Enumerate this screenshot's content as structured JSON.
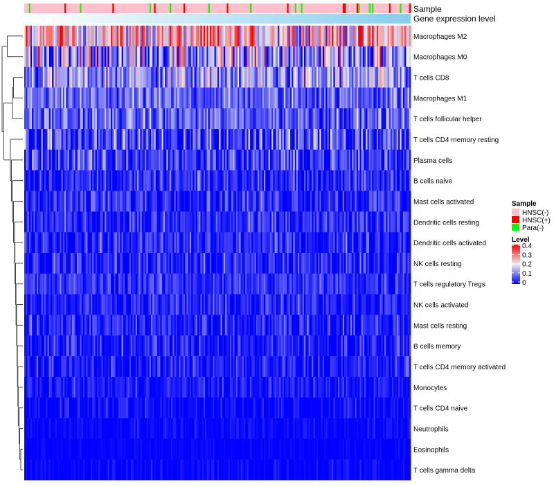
{
  "chart_data": {
    "type": "heatmap",
    "n_columns": 250,
    "annotations": [
      {
        "name": "Sample",
        "kind": "categorical"
      },
      {
        "name": "Gene expression level",
        "kind": "continuous",
        "colors": [
          "#FFFFFF",
          "#87CEEB"
        ]
      }
    ],
    "rows": [
      {
        "label": "Macrophages M2",
        "mean": 0.24,
        "spread": 0.12
      },
      {
        "label": "Macrophages M0",
        "mean": 0.13,
        "spread": 0.14
      },
      {
        "label": "T cells CD8",
        "mean": 0.12,
        "spread": 0.09
      },
      {
        "label": "Macrophages M1",
        "mean": 0.08,
        "spread": 0.06
      },
      {
        "label": "T cells follicular helper",
        "mean": 0.08,
        "spread": 0.06
      },
      {
        "label": "T cells CD4 memory resting",
        "mean": 0.06,
        "spread": 0.09
      },
      {
        "label": "Plasma cells",
        "mean": 0.05,
        "spread": 0.07
      },
      {
        "label": "B cells naive",
        "mean": 0.03,
        "spread": 0.05
      },
      {
        "label": "Mast cells activated",
        "mean": 0.04,
        "spread": 0.05
      },
      {
        "label": "Dendritic cells resting",
        "mean": 0.03,
        "spread": 0.05
      },
      {
        "label": "Dendritic cells activated",
        "mean": 0.03,
        "spread": 0.05
      },
      {
        "label": "NK cells resting",
        "mean": 0.03,
        "spread": 0.05
      },
      {
        "label": "T cells regulatory  Tregs",
        "mean": 0.04,
        "spread": 0.04
      },
      {
        "label": "NK cells activated",
        "mean": 0.03,
        "spread": 0.04
      },
      {
        "label": "Mast cells resting",
        "mean": 0.03,
        "spread": 0.05
      },
      {
        "label": "B cells memory",
        "mean": 0.02,
        "spread": 0.05
      },
      {
        "label": "T cells CD4 memory activated",
        "mean": 0.02,
        "spread": 0.04
      },
      {
        "label": "Monocytes",
        "mean": 0.02,
        "spread": 0.03
      },
      {
        "label": "T cells CD4 naive",
        "mean": 0.005,
        "spread": 0.03
      },
      {
        "label": "Neutrophils",
        "mean": 0.005,
        "spread": 0.02
      },
      {
        "label": "Eosinophils",
        "mean": 0.002,
        "spread": 0.01
      },
      {
        "label": "T cells gamma delta",
        "mean": 0.003,
        "spread": 0.02
      }
    ],
    "dendrogram": {
      "h": 1.0,
      "c": [
        {
          "h": 0.75,
          "c": [
            0,
            1
          ]
        },
        {
          "h": 0.92,
          "c": [
            {
              "h": 0.5,
              "c": [
                {
                  "h": 0.45,
                  "c": [
                    2,
                    3
                  ]
                },
                4
              ]
            },
            {
              "h": 0.6,
              "c": [
                5,
                {
                  "h": 0.55,
                  "c": [
                    6,
                    {
                      "h": 0.5,
                      "c": [
                        7,
                        {
                          "h": 0.45,
                          "c": [
                            8,
                            {
                              "h": 0.4,
                              "c": [
                                9,
                                {
                                  "h": 0.38,
                                  "c": [
                                    10,
                                    {
                                      "h": 0.35,
                                      "c": [
                                        11,
                                        {
                                          "h": 0.33,
                                          "c": [
                                            12,
                                            {
                                              "h": 0.3,
                                              "c": [
                                                13,
                                                {
                                                  "h": 0.28,
                                                  "c": [
                                                    14,
                                                    {
                                                      "h": 0.26,
                                                      "c": [
                                                        15,
                                                        {
                                                          "h": 0.24,
                                                          "c": [
                                                            16,
                                                            {
                                                              "h": 0.22,
                                                              "c": [
                                                                17,
                                                                {
                                                                  "h": 0.18,
                                                                  "c": [
                                                                    18,
                                                                    {
                                                                      "h": 0.15,
                                                                      "c": [
                                                                        19,
                                                                        {
                                                                          "h": 0.1,
                                                                          "c": [
                                                                            20,
                                                                            21
                                                                          ]
                                                                        }
                                                                      ]
                                                                    }
                                                                  ]
                                                                }
                                                              ]
                                                            }
                                                          ]
                                                        }
                                                      ]
                                                    }
                                                  ]
                                                }
                                              ]
                                            }
                                          ]
                                        }
                                      ]
                                    }
                                  ]
                                }
                              ]
                            }
                          ]
                        }
                      ]
                    }
                  ]
                }
              ]
            }
          ]
        }
      ]
    },
    "legend": {
      "sample_title": "Sample",
      "sample_items": [
        {
          "label": "HNSC(-)",
          "color": "#FFC0CB",
          "proportion": 0.9
        },
        {
          "label": "HNSC(+)",
          "color": "#FF0000",
          "proportion": 0.05
        },
        {
          "label": "Para(-)",
          "color": "#00FF00",
          "proportion": 0.05
        }
      ],
      "level_title": "Level",
      "level_ticks": [
        "0.4",
        "0.3",
        "0.2",
        "0.1",
        "0"
      ],
      "level_range": [
        0,
        0.4
      ],
      "level_colors": [
        "#0000FF",
        "#EEEEEE",
        "#FF0000"
      ]
    }
  }
}
